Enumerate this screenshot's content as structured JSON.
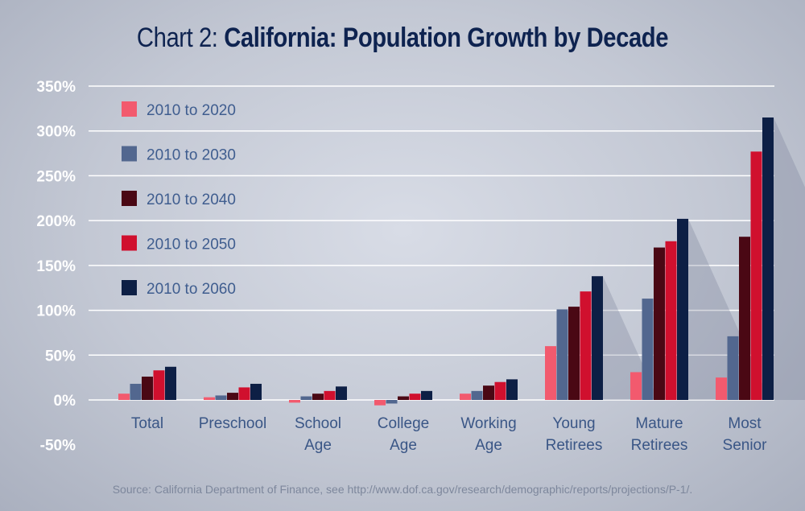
{
  "title": {
    "prefix": "Chart 2: ",
    "main": "California: Population Growth by Decade"
  },
  "source": "Source: California Department of Finance, see http://www.dof.ca.gov/research/demographic/reports/projections/P-1/.",
  "chart_data": {
    "type": "bar",
    "title": "Chart 2: California: Population Growth by Decade",
    "categories": [
      [
        "Total"
      ],
      [
        "Preschool"
      ],
      [
        "School",
        "Age"
      ],
      [
        "College",
        "Age"
      ],
      [
        "Working",
        "Age"
      ],
      [
        "Young",
        "Retirees"
      ],
      [
        "Mature",
        "Retirees"
      ],
      [
        "Most",
        "Senior"
      ]
    ],
    "series": [
      {
        "name": "2010 to 2020",
        "color": "#f25a6e",
        "values": [
          7,
          3,
          -3,
          -6,
          7,
          60,
          31,
          25
        ]
      },
      {
        "name": "2010 to 2030",
        "color": "#52678f",
        "values": [
          18,
          5,
          4,
          -4,
          10,
          101,
          113,
          71
        ]
      },
      {
        "name": "2010 to 2040",
        "color": "#4a0814",
        "values": [
          26,
          8,
          7,
          4,
          16,
          104,
          170,
          182
        ]
      },
      {
        "name": "2010 to 2050",
        "color": "#d0102e",
        "values": [
          33,
          14,
          10,
          7,
          20,
          121,
          177,
          277
        ]
      },
      {
        "name": "2010 to 2060",
        "color": "#0d1f45",
        "values": [
          37,
          18,
          15,
          10,
          23,
          138,
          202,
          315
        ]
      }
    ],
    "yticks": [
      "350%",
      "300%",
      "250%",
      "200%",
      "150%",
      "100%",
      "50%",
      "0%",
      "-50%"
    ],
    "ylim": [
      -50,
      350
    ],
    "grid": true,
    "legend": "top-left"
  }
}
